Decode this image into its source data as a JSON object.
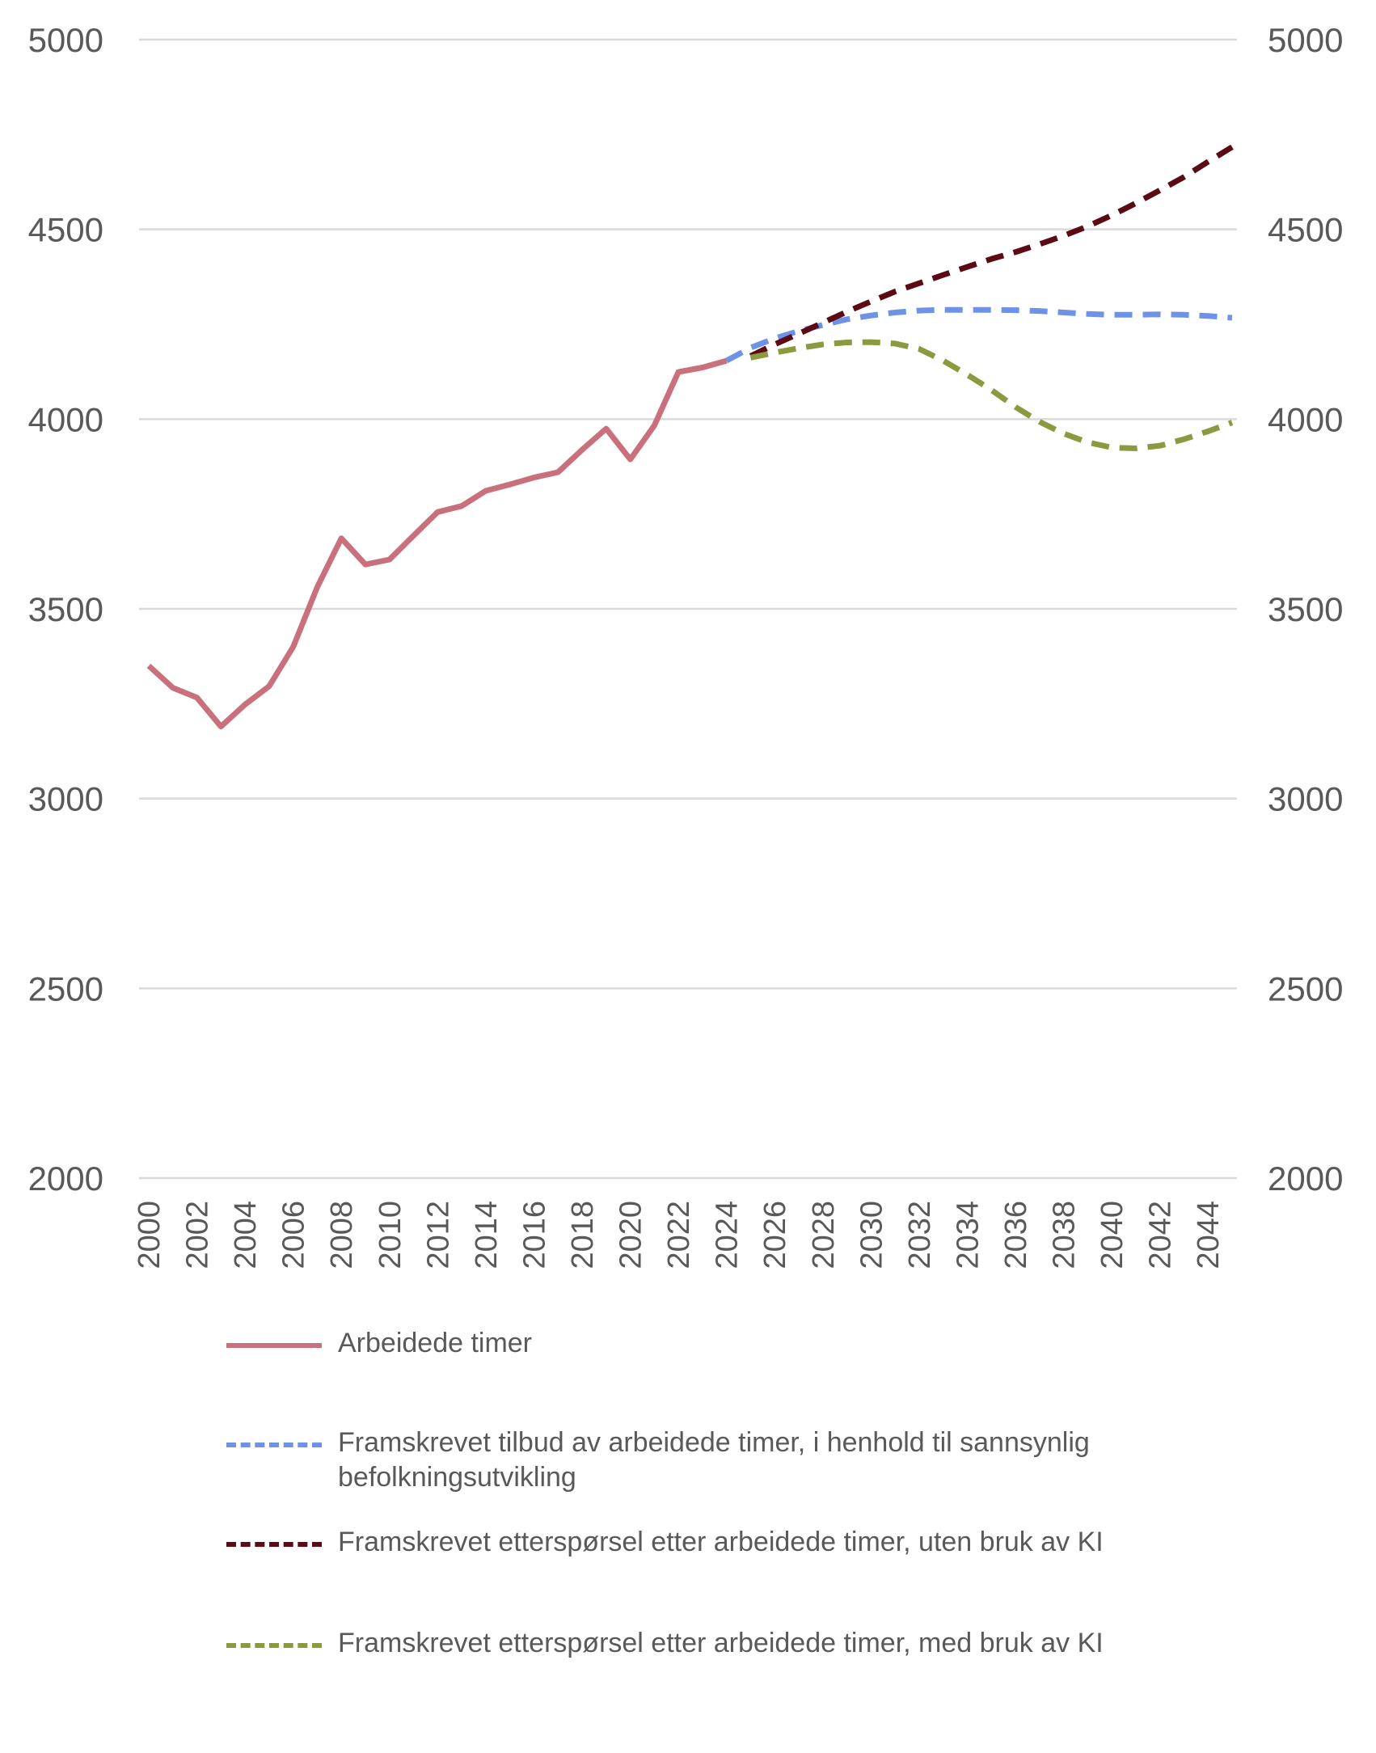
{
  "chart_data": {
    "type": "line",
    "title": "",
    "xlabel": "",
    "ylabel": "",
    "ylim": [
      2000,
      5000
    ],
    "y_ticks": [
      "2000",
      "2500",
      "3000",
      "3500",
      "4000",
      "4500",
      "5000"
    ],
    "secondary_y_ticks": [
      "2000",
      "2500",
      "3000",
      "3500",
      "4000",
      "4500",
      "5000"
    ],
    "x_ticks": [
      "2000",
      "2002",
      "2004",
      "2006",
      "2008",
      "2010",
      "2012",
      "2014",
      "2016",
      "2018",
      "2020",
      "2022",
      "2024",
      "2026",
      "2028",
      "2030",
      "2032",
      "2034",
      "2036",
      "2038",
      "2040",
      "2042",
      "2044"
    ],
    "xlim": [
      2000,
      2045
    ],
    "grid": true,
    "legend_position": "bottom",
    "series": [
      {
        "name": "Arbeidede timer",
        "color": "#c9707c",
        "style": "solid",
        "x": [
          2000,
          2001,
          2002,
          2003,
          2004,
          2005,
          2006,
          2007,
          2008,
          2009,
          2010,
          2011,
          2012,
          2013,
          2014,
          2015,
          2016,
          2017,
          2018,
          2019,
          2020,
          2021,
          2022,
          2023,
          2024
        ],
        "values": [
          3350,
          3292,
          3266,
          3190,
          3248,
          3296,
          3400,
          3557,
          3686,
          3617,
          3630,
          3693,
          3755,
          3771,
          3811,
          3828,
          3846,
          3860,
          3919,
          3975,
          3894,
          3983,
          4124,
          4136,
          4154
        ]
      },
      {
        "name": "Framskrevet tilbud av arbeidede timer, i henhold til sannsynlig befolkningsutvikling",
        "color": "#6e93e6",
        "style": "dashed",
        "x": [
          2024,
          2025,
          2026,
          2027,
          2028,
          2029,
          2030,
          2031,
          2032,
          2033,
          2034,
          2035,
          2036,
          2037,
          2038,
          2039,
          2040,
          2041,
          2042,
          2043,
          2044,
          2045
        ],
        "values": [
          4154,
          4188,
          4213,
          4232,
          4248,
          4263,
          4273,
          4281,
          4286,
          4288,
          4288,
          4288,
          4287,
          4285,
          4281,
          4277,
          4275,
          4275,
          4276,
          4275,
          4272,
          4267
        ]
      },
      {
        "name": "Framskrevet etterspørsel etter arbeidede timer, uten bruk av KI",
        "color": "#5c0a14",
        "style": "dashed",
        "x": [
          2025,
          2026,
          2027,
          2028,
          2029,
          2030,
          2031,
          2032,
          2033,
          2034,
          2035,
          2036,
          2037,
          2038,
          2039,
          2040,
          2041,
          2042,
          2043,
          2044,
          2045
        ],
        "values": [
          4166,
          4197,
          4225,
          4254,
          4283,
          4310,
          4336,
          4358,
          4380,
          4401,
          4422,
          4440,
          4461,
          4483,
          4508,
          4537,
          4569,
          4603,
          4638,
          4678,
          4717
        ]
      },
      {
        "name": "Framskrevet etterspørsel etter arbeidede timer, med bruk av KI",
        "color": "#8a9a3e",
        "style": "dashed",
        "x": [
          2025,
          2026,
          2027,
          2028,
          2029,
          2030,
          2031,
          2032,
          2033,
          2034,
          2035,
          2036,
          2037,
          2038,
          2039,
          2040,
          2041,
          2042,
          2043,
          2044,
          2045
        ],
        "values": [
          4162,
          4175,
          4187,
          4197,
          4202,
          4203,
          4199,
          4185,
          4154,
          4117,
          4077,
          4032,
          3993,
          3962,
          3939,
          3925,
          3923,
          3930,
          3947,
          3968,
          3991
        ]
      }
    ]
  }
}
